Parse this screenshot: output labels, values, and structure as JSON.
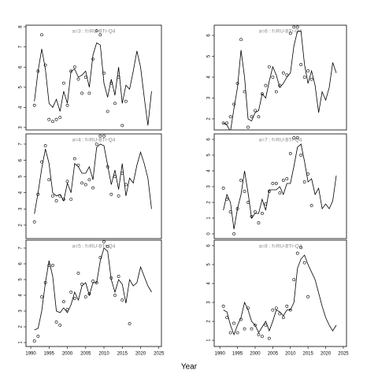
{
  "xlabel": "Year",
  "chart_data": [
    {
      "type": "line",
      "title": "a=3 : f=RU-BTr-Q4",
      "x": [
        1991,
        1992,
        1993,
        1994,
        1995,
        1996,
        1997,
        1998,
        1999,
        2000,
        2001,
        2002,
        2003,
        2004,
        2005,
        2006,
        2007,
        2008,
        2009,
        2010,
        2011,
        2012,
        2013,
        2014,
        2015,
        2016,
        2017,
        2018,
        2019,
        2020,
        2021,
        2022,
        2023
      ],
      "xlim": [
        1988.7,
        2025.7
      ],
      "ylim": [
        2.88,
        8.08
      ],
      "yticks": [
        3,
        4,
        5,
        6,
        7,
        8
      ],
      "series": [
        {
          "color": "#000000",
          "values": [
            4.3,
            5.8,
            6.9,
            5.9,
            4.2,
            4.0,
            4.4,
            3.8,
            4.8,
            4.2,
            5.8,
            5.9,
            5.5,
            5.6,
            5.8,
            5.0,
            6.6,
            7.2,
            7.1,
            5.2,
            4.5,
            5.4,
            4.6,
            6.0,
            4.2,
            5.1,
            4.9,
            5.8,
            6.8,
            6.0,
            4.5,
            3.1,
            4.8
          ]
        },
        {
          "color": "#000000",
          "marker": "circle",
          "values": [
            4.1,
            5.8,
            7.6,
            6.1,
            3.4,
            3.3,
            3.4,
            3.5,
            5.2,
            4.1,
            5.8,
            6.0,
            5.4,
            4.7,
            5.5,
            4.7,
            6.4,
            7.8,
            7.6,
            5.7,
            3.8,
            5.2,
            4.2,
            5.5,
            3.1,
            4.3,
            null,
            null,
            null,
            null,
            null,
            null,
            null
          ]
        }
      ]
    },
    {
      "type": "line",
      "title": "a=4 : f=RU-BTr-Q4",
      "x": [
        1991,
        1992,
        1993,
        1994,
        1995,
        1996,
        1997,
        1998,
        1999,
        2000,
        2001,
        2002,
        2003,
        2004,
        2005,
        2006,
        2007,
        2008,
        2009,
        2010,
        2011,
        2012,
        2013,
        2014,
        2015,
        2016,
        2017,
        2018,
        2019,
        2020,
        2021,
        2022,
        2023
      ],
      "xlim": [
        1988.7,
        2025.7
      ],
      "ylim": [
        1.17,
        7.63
      ],
      "yticks": [
        2,
        3,
        4,
        5,
        6,
        7
      ],
      "series": [
        {
          "color": "#000000",
          "values": [
            2.7,
            4.0,
            5.5,
            6.7,
            5.8,
            4.0,
            3.8,
            3.9,
            3.5,
            4.6,
            4.0,
            5.8,
            5.6,
            5.2,
            5.2,
            5.6,
            4.8,
            6.8,
            7.0,
            6.9,
            5.7,
            4.5,
            5.4,
            4.2,
            5.8,
            3.8,
            4.9,
            4.6,
            5.7,
            6.5,
            5.8,
            4.9,
            3.0
          ]
        },
        {
          "color": "#000000",
          "marker": "circle",
          "values": [
            2.2,
            3.9,
            5.9,
            6.9,
            4.8,
            3.8,
            3.5,
            3.8,
            3.6,
            4.7,
            3.6,
            6.1,
            5.7,
            4.6,
            4.5,
            4.8,
            4.3,
            7.0,
            7.5,
            7.5,
            5.6,
            3.9,
            5.0,
            3.8,
            5.2,
            4.5,
            null,
            null,
            null,
            null,
            null,
            null,
            null
          ]
        }
      ]
    },
    {
      "type": "line",
      "title": "a=5 : f=RU-BTr-Q4",
      "x": [
        1991,
        1992,
        1993,
        1994,
        1995,
        1996,
        1997,
        1998,
        1999,
        2000,
        2001,
        2002,
        2003,
        2004,
        2005,
        2006,
        2007,
        2008,
        2009,
        2010,
        2011,
        2012,
        2013,
        2014,
        2015,
        2016,
        2017,
        2018,
        2019,
        2020,
        2021,
        2022,
        2023
      ],
      "xlim": [
        1988.7,
        2025.7
      ],
      "ylim": [
        0.75,
        7.5
      ],
      "yticks": [
        1,
        2,
        3,
        4,
        5,
        6,
        7
      ],
      "xticks": [
        1990,
        1995,
        2000,
        2005,
        2010,
        2015,
        2020,
        2025
      ],
      "series": [
        {
          "color": "#000000",
          "values": [
            1.8,
            1.9,
            3.0,
            4.8,
            6.2,
            5.2,
            3.0,
            2.9,
            3.2,
            2.9,
            3.4,
            4.2,
            3.7,
            4.6,
            4.8,
            4.0,
            4.8,
            4.8,
            6.2,
            7.0,
            6.8,
            5.0,
            4.2,
            5.0,
            4.7,
            3.5,
            5.0,
            4.6,
            4.8,
            5.8,
            5.2,
            4.6,
            4.2
          ]
        },
        {
          "color": "#000000",
          "marker": "circle",
          "values": [
            1.1,
            1.4,
            3.9,
            4.8,
            5.9,
            5.9,
            2.3,
            2.1,
            3.6,
            3.1,
            4.2,
            3.8,
            5.4,
            4.7,
            3.9,
            4.1,
            4.9,
            4.8,
            6.4,
            7.4,
            7.1,
            5.1,
            4.0,
            5.2,
            3.7,
            null,
            2.2,
            null,
            null,
            null,
            null,
            null,
            null
          ]
        }
      ]
    },
    {
      "type": "line",
      "title": "a=6 : f=RU-BTr-Q4",
      "x": [
        1991,
        1992,
        1993,
        1994,
        1995,
        1996,
        1997,
        1998,
        1999,
        2000,
        2001,
        2002,
        2003,
        2004,
        2005,
        2006,
        2007,
        2008,
        2009,
        2010,
        2011,
        2012,
        2013,
        2014,
        2015,
        2016,
        2017,
        2018,
        2019,
        2020,
        2021,
        2022,
        2023
      ],
      "xlim": [
        1988.4,
        2025.9
      ],
      "ylim": [
        1.47,
        6.49
      ],
      "yticks": [
        2,
        3,
        4,
        5,
        6
      ],
      "series": [
        {
          "color": "#000000",
          "values": [
            1.8,
            1.7,
            1.4,
            2.5,
            3.5,
            5.3,
            4.0,
            2.0,
            1.9,
            2.3,
            2.4,
            3.2,
            3.0,
            3.8,
            4.5,
            4.1,
            3.5,
            3.7,
            4.0,
            4.2,
            5.5,
            6.2,
            6.2,
            4.6,
            3.7,
            4.3,
            3.6,
            2.3,
            3.3,
            2.9,
            3.5,
            4.7,
            4.2
          ]
        },
        {
          "color": "#000000",
          "marker": "circle",
          "values": [
            1.8,
            1.8,
            2.1,
            2.7,
            3.7,
            5.8,
            3.3,
            1.6,
            2.1,
            2.4,
            2.1,
            3.2,
            3.6,
            4.5,
            4.0,
            3.3,
            3.6,
            4.2,
            4.1,
            6.1,
            6.4,
            6.4,
            4.6,
            4.0,
            4.3,
            3.9,
            null,
            null,
            null,
            null,
            null,
            null,
            null
          ]
        }
      ]
    },
    {
      "type": "line",
      "title": "a=7 : f=RU-BTr-Q4",
      "x": [
        1991,
        1992,
        1993,
        1994,
        1995,
        1996,
        1997,
        1998,
        1999,
        2000,
        2001,
        2002,
        2003,
        2004,
        2005,
        2006,
        2007,
        2008,
        2009,
        2010,
        2011,
        2012,
        2013,
        2014,
        2015,
        2016,
        2017,
        2018,
        2019,
        2020,
        2021,
        2022,
        2023
      ],
      "xlim": [
        1988.4,
        2025.9
      ],
      "ylim": [
        -0.3,
        6.35
      ],
      "yticks": [
        0,
        1,
        2,
        3,
        4,
        5,
        6
      ],
      "series": [
        {
          "color": "#000000",
          "values": [
            1.5,
            2.5,
            2.0,
            0.3,
            1.6,
            2.5,
            4.0,
            2.6,
            1.0,
            1.3,
            1.3,
            2.2,
            1.5,
            2.8,
            2.8,
            2.8,
            3.0,
            2.5,
            3.2,
            3.2,
            4.3,
            5.5,
            5.7,
            4.6,
            3.3,
            3.5,
            2.5,
            2.9,
            1.6,
            1.9,
            1.6,
            2.1,
            3.7
          ]
        },
        {
          "color": "#000000",
          "marker": "circle",
          "values": [
            2.9,
            2.2,
            1.4,
            0.0,
            1.6,
            3.4,
            2.7,
            2.0,
            1.1,
            1.4,
            0.7,
            1.3,
            1.9,
            2.7,
            3.2,
            3.2,
            2.6,
            3.4,
            3.5,
            5.1,
            6.1,
            6.1,
            5.0,
            3.3,
            3.8,
            1.8,
            null,
            null,
            null,
            null,
            null,
            null,
            null
          ]
        }
      ]
    },
    {
      "type": "line",
      "title": "a=8 : f=RU-BTr-Q4",
      "x": [
        1991,
        1992,
        1993,
        1994,
        1995,
        1996,
        1997,
        1998,
        1999,
        2000,
        2001,
        2002,
        2003,
        2004,
        2005,
        2006,
        2007,
        2008,
        2009,
        2010,
        2011,
        2012,
        2013,
        2014,
        2015,
        2016,
        2017,
        2018,
        2019,
        2020,
        2021,
        2022,
        2023
      ],
      "xlim": [
        1988.4,
        2025.9
      ],
      "ylim": [
        0.67,
        6.29
      ],
      "yticks": [
        1,
        2,
        3,
        4,
        5,
        6
      ],
      "xticks": [
        1990,
        1995,
        2000,
        2005,
        2010,
        2015,
        2020,
        2025
      ],
      "series": [
        {
          "color": "#000000",
          "values": [
            2.6,
            2.5,
            1.8,
            1.3,
            1.8,
            2.2,
            3.0,
            2.6,
            2.0,
            1.8,
            1.4,
            1.7,
            2.0,
            1.5,
            2.0,
            2.6,
            2.5,
            2.3,
            2.6,
            2.6,
            3.0,
            4.8,
            5.3,
            5.5,
            5.0,
            4.6,
            4.2,
            3.5,
            2.8,
            2.2,
            1.8,
            1.5,
            1.8
          ]
        },
        {
          "color": "#000000",
          "marker": "circle",
          "values": [
            2.8,
            2.2,
            1.4,
            1.9,
            1.4,
            2.1,
            1.6,
            2.7,
            1.6,
            1.8,
            1.3,
            1.2,
            1.8,
            1.1,
            2.6,
            2.7,
            2.4,
            2.2,
            2.8,
            2.6,
            4.2,
            5.6,
            5.9,
            5.1,
            3.3,
            null,
            null,
            null,
            null,
            null,
            null,
            null,
            null
          ]
        }
      ]
    }
  ]
}
